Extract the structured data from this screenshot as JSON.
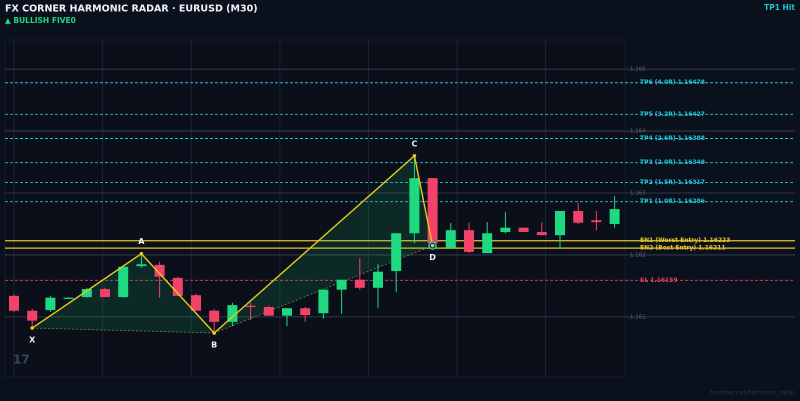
{
  "chart_data": {
    "type": "candlestick",
    "title": "FX CORNER HARMONIC RADAR  ·  EURUSD (M30)",
    "subtitle": "▲ BULLISH  FIVE0",
    "status": "TP1 Hit",
    "watermark": "17",
    "footer": "fxcorner.net/harmonic_radar",
    "categories": [
      null,
      null,
      null,
      null,
      null,
      null,
      null,
      null,
      null,
      null,
      null,
      null,
      null,
      null,
      null,
      null,
      null,
      null,
      null,
      null,
      null,
      null,
      null,
      null,
      null,
      null,
      null,
      null,
      null,
      null,
      null,
      null,
      null,
      null
    ],
    "open": [
      1.16134,
      1.1611,
      1.16111,
      1.16129,
      1.16132,
      1.16145,
      1.16132,
      1.16182,
      1.16184,
      1.16163,
      1.16135,
      1.1611,
      1.16092,
      1.16118,
      1.16116,
      1.16102,
      1.16114,
      1.16106,
      1.16144,
      1.1616,
      1.16147,
      1.16174,
      1.16235,
      1.16324,
      1.16211,
      1.1624,
      1.16203,
      1.16237,
      1.16244,
      1.16237,
      1.16232,
      1.16271,
      1.16256,
      1.1625
    ],
    "high": [
      1.16137,
      1.16113,
      1.16134,
      1.16132,
      1.16147,
      1.16147,
      1.16184,
      1.16202,
      1.16189,
      1.16165,
      1.16137,
      1.16113,
      1.16123,
      1.16123,
      1.16118,
      1.16114,
      1.16116,
      1.16144,
      1.1616,
      1.16195,
      1.16185,
      1.16235,
      1.1636,
      1.16324,
      1.16252,
      1.16252,
      1.16253,
      1.16269,
      1.16244,
      1.16253,
      1.16271,
      1.16284,
      1.16271,
      1.16295
    ],
    "low": [
      1.16108,
      1.16082,
      1.16108,
      1.16129,
      1.16131,
      1.16132,
      1.16131,
      1.16179,
      1.16131,
      1.16134,
      1.1611,
      1.16074,
      1.16085,
      1.16095,
      1.16102,
      1.16085,
      1.16092,
      1.16097,
      1.16105,
      1.16144,
      1.16114,
      1.1614,
      1.16219,
      1.16215,
      1.1621,
      1.16203,
      1.16203,
      1.16235,
      1.16237,
      1.16232,
      1.1621,
      1.1625,
      1.1624,
      1.16244
    ],
    "close": [
      1.1611,
      1.16094,
      1.16131,
      1.16131,
      1.16145,
      1.16132,
      1.16181,
      1.16185,
      1.16165,
      1.16134,
      1.1611,
      1.16092,
      1.16119,
      1.16116,
      1.16102,
      1.16114,
      1.16103,
      1.16144,
      1.1616,
      1.16147,
      1.16173,
      1.16235,
      1.16324,
      1.16219,
      1.1624,
      1.16205,
      1.16235,
      1.16244,
      1.16237,
      1.16232,
      1.16271,
      1.16252,
      1.16253,
      1.16274
    ],
    "up_color": "#1ed980",
    "down_color": "#f2426a",
    "ylim": [
      1.16003,
      1.16547
    ],
    "yticks": [
      1.161,
      1.162,
      1.163,
      1.164,
      1.165
    ],
    "grid": true,
    "pattern": {
      "color": "#e8c81e",
      "points": [
        {
          "label": "X",
          "x": 1,
          "value": 1.16082
        },
        {
          "label": "A",
          "x": 7,
          "value": 1.16202
        },
        {
          "label": "B",
          "x": 11,
          "value": 1.16074
        },
        {
          "label": "C",
          "x": 22,
          "value": 1.1636
        },
        {
          "label": "D",
          "x": 23,
          "value": 1.16215
        }
      ]
    },
    "levels": [
      {
        "value": 1.16478,
        "label": "TP6 (4.0R)  1.16478",
        "color": "#22c3d6"
      },
      {
        "value": 1.16427,
        "label": "TP5 (3.2R)  1.16427",
        "color": "#22c3d6"
      },
      {
        "value": 1.16388,
        "label": "TP4 (2.6R)  1.16388",
        "color": "#22c3d6"
      },
      {
        "value": 1.16349,
        "label": "TP3 (2.0R)  1.16349",
        "color": "#22c3d6"
      },
      {
        "value": 1.16317,
        "label": "TP2 (1.5R)  1.16317",
        "color": "#22c3d6"
      },
      {
        "value": 1.16286,
        "label": "TP1 (1.0R)  1.16286",
        "color": "#22c3d6"
      },
      {
        "value": 1.16223,
        "label": "EN1 (Worst Entry)  1.16223",
        "color": "#e6c229"
      },
      {
        "value": 1.16211,
        "label": "EN2 (Best Entry)  1.16211",
        "color": "#e6c229"
      },
      {
        "value": 1.16159,
        "label": "SL  1.16159",
        "color": "#e0405a"
      }
    ]
  }
}
